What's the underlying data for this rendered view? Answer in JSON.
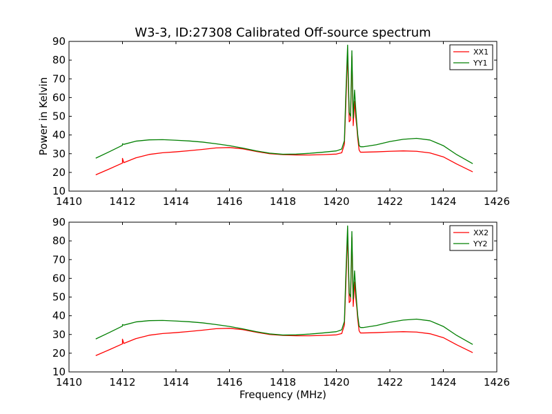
{
  "title": "W3-3, ID:27308 Calibrated Off-source spectrum",
  "chart_data": [
    {
      "type": "line",
      "xlabel": "",
      "ylabel": "Power in Kelvin",
      "xlim": [
        1410,
        1426
      ],
      "ylim": [
        10,
        90
      ],
      "xticks": [
        1410,
        1412,
        1414,
        1416,
        1418,
        1420,
        1422,
        1424,
        1426
      ],
      "yticks": [
        10,
        20,
        30,
        40,
        50,
        60,
        70,
        80,
        90
      ],
      "legend_position": "top-right",
      "grid": false,
      "series": [
        {
          "name": "XX1",
          "color": "#ff0000",
          "x": [
            1411.0,
            1411.5,
            1412.0,
            1412.0,
            1412.05,
            1412.5,
            1413.0,
            1413.5,
            1414.0,
            1414.5,
            1415.0,
            1415.5,
            1416.0,
            1416.5,
            1417.0,
            1417.5,
            1418.0,
            1418.5,
            1419.0,
            1419.5,
            1420.0,
            1420.2,
            1420.3,
            1420.35,
            1420.42,
            1420.48,
            1420.53,
            1420.58,
            1420.63,
            1420.68,
            1420.72,
            1420.76,
            1420.8,
            1420.85,
            1420.9,
            1421.0,
            1421.5,
            1422.0,
            1422.5,
            1423.0,
            1423.5,
            1424.0,
            1424.5,
            1425.1
          ],
          "y": [
            18.7,
            21.8,
            25.0,
            27.5,
            25.2,
            27.8,
            29.6,
            30.5,
            31.0,
            31.6,
            32.3,
            33.1,
            33.3,
            32.6,
            31.2,
            30.0,
            29.5,
            29.3,
            29.3,
            29.5,
            29.8,
            30.5,
            35.0,
            55.0,
            84.0,
            47.0,
            48.0,
            82.0,
            45.0,
            58.0,
            50.0,
            45.0,
            38.0,
            32.0,
            30.8,
            30.8,
            31.0,
            31.3,
            31.5,
            31.3,
            30.4,
            28.3,
            24.5,
            20.3
          ]
        },
        {
          "name": "YY1",
          "color": "#007f00",
          "x": [
            1411.0,
            1411.5,
            1412.0,
            1412.0,
            1412.05,
            1412.5,
            1413.0,
            1413.5,
            1414.0,
            1414.5,
            1415.0,
            1415.5,
            1416.0,
            1416.5,
            1417.0,
            1417.5,
            1418.0,
            1418.5,
            1419.0,
            1419.5,
            1420.0,
            1420.2,
            1420.3,
            1420.35,
            1420.42,
            1420.48,
            1420.53,
            1420.58,
            1420.63,
            1420.68,
            1420.72,
            1420.76,
            1420.8,
            1420.85,
            1420.9,
            1421.0,
            1421.5,
            1422.0,
            1422.5,
            1423.0,
            1423.5,
            1424.0,
            1424.5,
            1425.1
          ],
          "y": [
            27.6,
            31.0,
            34.5,
            35.3,
            35.0,
            36.7,
            37.4,
            37.5,
            37.2,
            36.8,
            36.2,
            35.3,
            34.3,
            33.0,
            31.5,
            30.3,
            29.7,
            29.8,
            30.2,
            30.8,
            31.5,
            32.5,
            37.0,
            60.0,
            88.0,
            52.0,
            50.0,
            85.0,
            49.0,
            64.0,
            55.0,
            47.0,
            40.0,
            34.5,
            33.7,
            33.7,
            34.8,
            36.5,
            37.7,
            38.2,
            37.3,
            34.3,
            29.5,
            24.7
          ]
        }
      ]
    },
    {
      "type": "line",
      "xlabel": "Frequency (MHz)",
      "ylabel": "",
      "xlim": [
        1410,
        1426
      ],
      "ylim": [
        10,
        90
      ],
      "xticks": [
        1410,
        1412,
        1414,
        1416,
        1418,
        1420,
        1422,
        1424,
        1426
      ],
      "yticks": [
        10,
        20,
        30,
        40,
        50,
        60,
        70,
        80,
        90
      ],
      "legend_position": "top-right",
      "grid": false,
      "series": [
        {
          "name": "XX2",
          "color": "#ff0000",
          "x": [
            1411.0,
            1411.5,
            1412.0,
            1412.0,
            1412.05,
            1412.5,
            1413.0,
            1413.5,
            1414.0,
            1414.5,
            1415.0,
            1415.5,
            1416.0,
            1416.5,
            1417.0,
            1417.5,
            1418.0,
            1418.5,
            1419.0,
            1419.5,
            1420.0,
            1420.2,
            1420.3,
            1420.35,
            1420.42,
            1420.48,
            1420.53,
            1420.58,
            1420.63,
            1420.68,
            1420.72,
            1420.76,
            1420.8,
            1420.85,
            1420.9,
            1421.0,
            1421.5,
            1422.0,
            1422.5,
            1423.0,
            1423.5,
            1424.0,
            1424.5,
            1425.1
          ],
          "y": [
            18.7,
            21.8,
            25.0,
            27.5,
            25.2,
            27.8,
            29.6,
            30.5,
            31.0,
            31.6,
            32.3,
            33.1,
            33.3,
            32.6,
            31.2,
            30.0,
            29.5,
            29.3,
            29.3,
            29.5,
            29.8,
            30.5,
            35.0,
            55.0,
            84.0,
            47.0,
            48.0,
            82.0,
            45.0,
            58.0,
            50.0,
            45.0,
            38.0,
            32.0,
            30.8,
            30.8,
            31.0,
            31.3,
            31.5,
            31.3,
            30.4,
            28.3,
            24.5,
            20.3
          ]
        },
        {
          "name": "YY2",
          "color": "#007f00",
          "x": [
            1411.0,
            1411.5,
            1412.0,
            1412.0,
            1412.05,
            1412.5,
            1413.0,
            1413.5,
            1414.0,
            1414.5,
            1415.0,
            1415.5,
            1416.0,
            1416.5,
            1417.0,
            1417.5,
            1418.0,
            1418.5,
            1419.0,
            1419.5,
            1420.0,
            1420.2,
            1420.3,
            1420.35,
            1420.42,
            1420.48,
            1420.53,
            1420.58,
            1420.63,
            1420.68,
            1420.72,
            1420.76,
            1420.8,
            1420.85,
            1420.9,
            1421.0,
            1421.5,
            1422.0,
            1422.5,
            1423.0,
            1423.5,
            1424.0,
            1424.5,
            1425.1
          ],
          "y": [
            27.6,
            31.0,
            34.5,
            35.3,
            35.0,
            36.7,
            37.4,
            37.5,
            37.2,
            36.8,
            36.2,
            35.3,
            34.3,
            33.0,
            31.5,
            30.3,
            29.7,
            29.8,
            30.2,
            30.8,
            31.5,
            32.5,
            37.0,
            60.0,
            88.0,
            52.0,
            50.0,
            85.0,
            49.0,
            64.0,
            55.0,
            47.0,
            40.0,
            34.5,
            33.7,
            33.7,
            34.8,
            36.5,
            37.7,
            38.2,
            37.3,
            34.3,
            29.5,
            24.7
          ]
        }
      ]
    }
  ]
}
